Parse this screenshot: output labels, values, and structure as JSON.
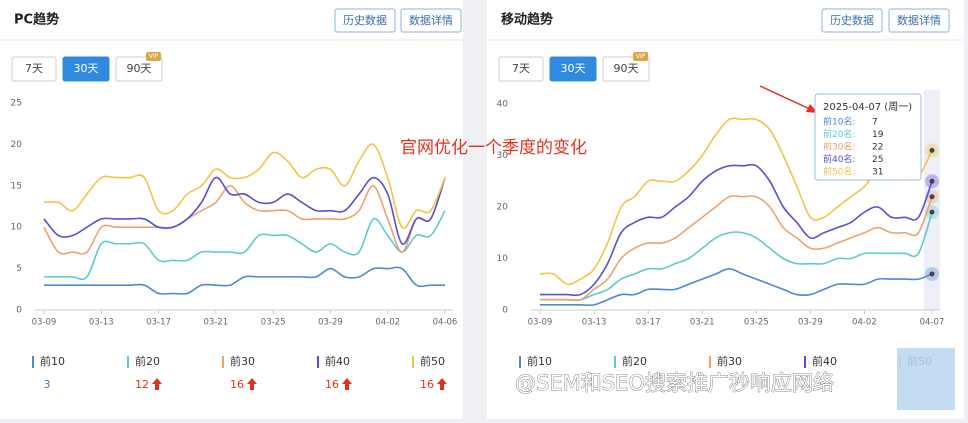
{
  "panels": [
    {
      "title": "PC趋势",
      "buttons": [
        "历史数据",
        "数据详情"
      ],
      "ranges": [
        "7天",
        "30天",
        "90天"
      ],
      "vip": "VIP",
      "legend_values": [
        3,
        12,
        16,
        16,
        16
      ],
      "legend_up": [
        false,
        true,
        true,
        true,
        true
      ]
    },
    {
      "title": "移动趋势",
      "buttons": [
        "历史数据",
        "数据详情"
      ],
      "ranges": [
        "7天",
        "30天",
        "90天"
      ],
      "vip": "VIP"
    }
  ],
  "annotation": "官网优化一个季度的变化",
  "watermark": "@SEM和SEO搜索推广秒响应网络",
  "chart_data": [
    {
      "type": "line",
      "grid": false,
      "categories": [
        "03-09",
        null,
        null,
        null,
        "03-13",
        null,
        null,
        null,
        "03-17",
        null,
        null,
        null,
        "03-21",
        null,
        null,
        null,
        "03-25",
        null,
        null,
        null,
        "03-29",
        null,
        null,
        null,
        "04-02",
        null,
        null,
        null,
        "04-06"
      ],
      "ylim": [
        0,
        25
      ],
      "yticks": [
        0,
        5,
        10,
        15,
        20,
        25
      ],
      "series": [
        {
          "name": "前10",
          "color": "#4f86d6",
          "values": [
            3,
            3,
            3,
            3,
            3,
            3,
            3,
            3,
            2,
            2,
            2,
            3,
            3,
            3,
            4,
            4,
            4,
            4,
            4,
            4,
            5,
            4,
            4,
            5,
            5,
            5,
            3,
            3,
            3
          ]
        },
        {
          "name": "前20",
          "color": "#5ccbcb",
          "values": [
            4,
            4,
            4,
            4,
            8,
            8,
            8,
            8,
            6,
            6,
            6,
            7,
            7,
            7,
            7,
            9,
            9,
            9,
            8,
            7,
            8,
            7,
            7,
            11,
            9,
            7,
            9,
            9,
            12
          ]
        },
        {
          "name": "前30",
          "color": "#e9a46e",
          "values": [
            10,
            7,
            7,
            7,
            10,
            10,
            10,
            10,
            10,
            10,
            11,
            12,
            13,
            15,
            13,
            12,
            12,
            12,
            11,
            11,
            11,
            11,
            12,
            15,
            11,
            7,
            11,
            11,
            16
          ]
        },
        {
          "name": "前40",
          "color": "#5a4fcf",
          "values": [
            11,
            9,
            9,
            10,
            11,
            11,
            11,
            11,
            10,
            10,
            11,
            13,
            16,
            14,
            14,
            13,
            13,
            14,
            13,
            12,
            12,
            12,
            14,
            16,
            14,
            8,
            11,
            11,
            16
          ]
        },
        {
          "name": "前50",
          "color": "#f0c445",
          "values": [
            13,
            13,
            12,
            14,
            16,
            16,
            16,
            16,
            12,
            12,
            14,
            15,
            17,
            16,
            16,
            17,
            19,
            18,
            16,
            17,
            17,
            15,
            18,
            20,
            16,
            10,
            12,
            12,
            16
          ]
        }
      ]
    },
    {
      "type": "line",
      "grid": false,
      "categories": [
        "03-09",
        null,
        null,
        null,
        "03-13",
        null,
        null,
        null,
        "03-17",
        null,
        null,
        null,
        "03-21",
        null,
        null,
        null,
        "03-25",
        null,
        null,
        null,
        "03-29",
        null,
        null,
        null,
        "04-02",
        null,
        null,
        null,
        null,
        "04-07"
      ],
      "ylim": [
        0,
        40
      ],
      "yticks": [
        0,
        10,
        20,
        30,
        40
      ],
      "series": [
        {
          "name": "前10",
          "color": "#4f86d6",
          "values": [
            1,
            1,
            1,
            1,
            1,
            2,
            3,
            3,
            4,
            4,
            4,
            5,
            6,
            7,
            8,
            7,
            6,
            5,
            4,
            3,
            3,
            4,
            5,
            5,
            5,
            6,
            6,
            6,
            6,
            7
          ]
        },
        {
          "name": "前20",
          "color": "#5ccbcb",
          "values": [
            2,
            2,
            2,
            2,
            3,
            4,
            6,
            7,
            8,
            8,
            9,
            10,
            12,
            14,
            15,
            15,
            14,
            12,
            10,
            9,
            9,
            9,
            10,
            10,
            11,
            11,
            11,
            11,
            11,
            19
          ]
        },
        {
          "name": "前30",
          "color": "#e9a46e",
          "values": [
            2,
            2,
            2,
            2,
            4,
            6,
            10,
            12,
            13,
            13,
            14,
            16,
            18,
            20,
            22,
            22,
            22,
            20,
            16,
            14,
            12,
            12,
            13,
            14,
            15,
            16,
            15,
            15,
            15,
            22
          ]
        },
        {
          "name": "前40",
          "color": "#5a4fcf",
          "values": [
            3,
            3,
            3,
            3,
            5,
            9,
            15,
            17,
            18,
            18,
            20,
            22,
            25,
            27,
            28,
            28,
            28,
            25,
            20,
            17,
            14,
            15,
            16,
            17,
            19,
            20,
            18,
            18,
            18,
            25
          ]
        },
        {
          "name": "前50",
          "color": "#f0c445",
          "values": [
            7,
            7,
            5,
            6,
            8,
            13,
            20,
            22,
            25,
            25,
            25,
            27,
            30,
            34,
            37,
            37,
            37,
            35,
            30,
            24,
            18,
            18,
            20,
            22,
            24,
            27,
            26,
            26,
            26,
            31
          ]
        }
      ],
      "tooltip": {
        "title": "2025-04-07 (周一)",
        "items": [
          {
            "label": "前10名:",
            "value": 7
          },
          {
            "label": "前20名:",
            "value": 19
          },
          {
            "label": "前30名:",
            "value": 22
          },
          {
            "label": "前40名:",
            "value": 25
          },
          {
            "label": "前50名:",
            "value": 31
          }
        ]
      }
    }
  ]
}
